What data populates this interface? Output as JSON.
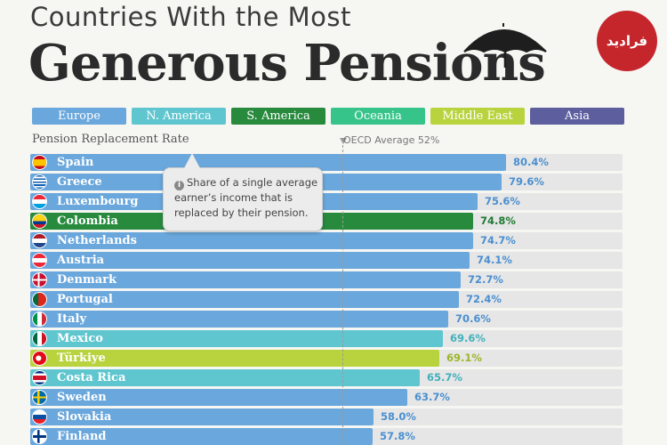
{
  "header": {
    "title_top": "Countries With the Most",
    "title_main": "Generous Pensions",
    "logo_text": "فرادید"
  },
  "legend": [
    {
      "label": "Europe",
      "color": "#6aa7dc",
      "text_color": "#ffffff"
    },
    {
      "label": "N. America",
      "color": "#5fc6cf",
      "text_color": "#ffffff"
    },
    {
      "label": "S. America",
      "color": "#278a3d",
      "text_color": "#ffffff"
    },
    {
      "label": "Oceania",
      "color": "#37c48b",
      "text_color": "#ffffff"
    },
    {
      "label": "Middle East",
      "color": "#b9d33e",
      "text_color": "#ffffff"
    },
    {
      "label": "Asia",
      "color": "#5c5e9e",
      "text_color": "#ffffff"
    }
  ],
  "subtitle": "Pension Replacement Rate",
  "oecd": {
    "label": "OECD Average 52%",
    "value": 52
  },
  "tooltip": {
    "lines": [
      "Share of a single average",
      "earner’s income that is",
      "replaced by their pension."
    ]
  },
  "chart_data": {
    "type": "bar",
    "title": "Countries With the Most Generous Pensions",
    "subtitle": "Pension Replacement Rate",
    "categories": [
      "Spain",
      "Greece",
      "Luxembourg",
      "Colombia",
      "Netherlands",
      "Austria",
      "Denmark",
      "Portugal",
      "Italy",
      "Mexico",
      "Türkiye",
      "Costa Rica",
      "Sweden",
      "Slovakia",
      "Finland"
    ],
    "values": [
      80.4,
      79.6,
      75.6,
      74.8,
      74.7,
      74.1,
      72.7,
      72.4,
      70.6,
      69.6,
      69.1,
      65.7,
      63.7,
      58.0,
      57.8
    ],
    "value_labels": [
      "80.4%",
      "79.6%",
      "75.6%",
      "74.8%",
      "74.7%",
      "74.1%",
      "72.7%",
      "72.4%",
      "70.6%",
      "69.6%",
      "69.1%",
      "65.7%",
      "63.7%",
      "58.0%",
      "57.8%"
    ],
    "regions": [
      "Europe",
      "Europe",
      "Europe",
      "S. America",
      "Europe",
      "Europe",
      "Europe",
      "Europe",
      "Europe",
      "N. America",
      "Middle East",
      "N. America",
      "Europe",
      "Europe",
      "Europe"
    ],
    "orientation": "horizontal",
    "reference_line": {
      "label": "OECD Average 52%",
      "value": 52
    }
  }
}
